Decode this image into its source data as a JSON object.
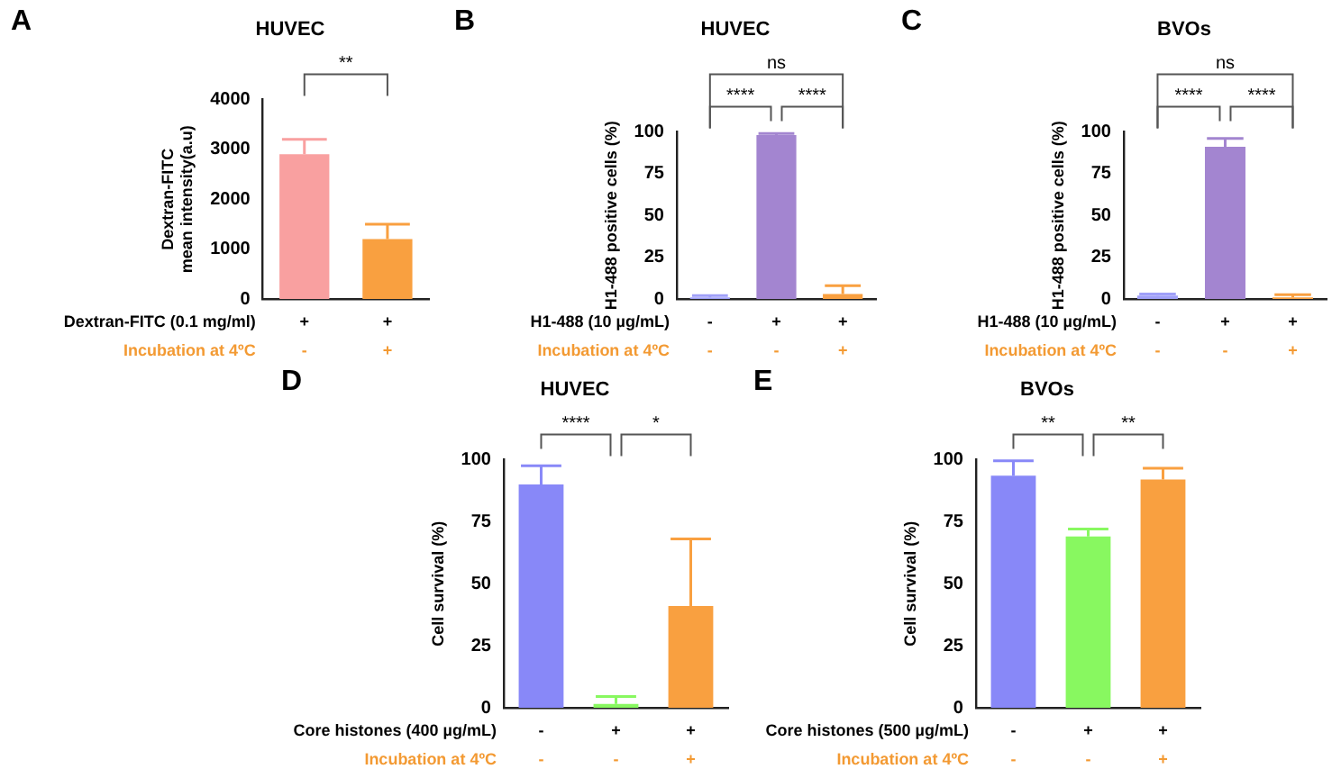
{
  "chart_data": [
    {
      "type": "bar",
      "title": "HUVEC",
      "ylabel": "Dextran-FITC\nmean intensity(a.u)",
      "xlabel": "Dextran-FITC (0.1 mg/ml)\nIncubation at 4ºC",
      "categories": [
        "+\n-",
        "+\n+"
      ],
      "values": [
        2900,
        1200
      ],
      "errors": [
        [
          2900,
          3200
        ],
        [
          1200,
          1500
        ]
      ],
      "colors": [
        "#f9a0a0",
        "#f9a040"
      ],
      "ylim": [
        0,
        4000
      ],
      "yticks": [
        0,
        1000,
        2000,
        3000,
        4000
      ],
      "grid": false,
      "legend": false,
      "annotations": [
        "A",
        "**"
      ]
    },
    {
      "type": "bar",
      "title": "HUVEC",
      "ylabel": "H1-488 positive cells (%)",
      "xlabel": "H1-488 (10 µg/mL)\nIncubation at 4ºC",
      "categories": [
        "-\n-",
        "+\n-",
        "+\n+"
      ],
      "values": [
        1,
        98,
        3
      ],
      "errors": [
        [
          1,
          2
        ],
        [
          98,
          99
        ],
        [
          3,
          8
        ]
      ],
      "colors": [
        "#a0a0f8",
        "#a385d0",
        "#f9a040"
      ],
      "ylim": [
        0,
        100
      ],
      "yticks": [
        0,
        25,
        50,
        75,
        100
      ],
      "grid": false,
      "legend": false,
      "annotations": [
        "B",
        "****",
        "****",
        "ns"
      ]
    },
    {
      "type": "bar",
      "title": "BVOs",
      "ylabel": "H1-488 positive cells (%)",
      "xlabel": "H1-488 (10 µg/mL)\nIncubation at 4ºC",
      "categories": [
        "-\n-",
        "+\n-",
        "+\n+"
      ],
      "values": [
        2,
        91,
        1
      ],
      "errors": [
        [
          2,
          3
        ],
        [
          91,
          96
        ],
        [
          1,
          2.5
        ]
      ],
      "colors": [
        "#a0a0f8",
        "#a385d0",
        "#f9a040"
      ],
      "ylim": [
        0,
        100
      ],
      "yticks": [
        0,
        25,
        50,
        75,
        100
      ],
      "grid": false,
      "legend": false,
      "annotations": [
        "C",
        "****",
        "****",
        "ns"
      ]
    },
    {
      "type": "bar",
      "title": "HUVEC",
      "ylabel": "Cell survival (%)",
      "xlabel": "Core histones (400 µg/mL)\nIncubation at 4ºC",
      "categories": [
        "-\n-",
        "+\n-",
        "+\n+"
      ],
      "values": [
        90,
        1.5,
        41
      ],
      "errors": [
        [
          90,
          97.5
        ],
        [
          1.5,
          4.5
        ],
        [
          41,
          68
        ]
      ],
      "colors": [
        "#8888f8",
        "#88f860",
        "#f9a040"
      ],
      "ylim": [
        0,
        100
      ],
      "yticks": [
        0,
        25,
        50,
        75,
        100
      ],
      "grid": false,
      "legend": false,
      "annotations": [
        "D",
        "****",
        "*"
      ]
    },
    {
      "type": "bar",
      "title": "BVOs",
      "ylabel": "Cell survival (%)",
      "xlabel": "Core histones (500 µg/mL)\nIncubation at 4ºC",
      "categories": [
        "-\n-",
        "+\n-",
        "+\n+"
      ],
      "values": [
        93.5,
        69,
        92
      ],
      "errors": [
        [
          93.5,
          99.5
        ],
        [
          69,
          72
        ],
        [
          92,
          96.5
        ]
      ],
      "colors": [
        "#8888f8",
        "#88f860",
        "#f9a040"
      ],
      "ylim": [
        0,
        100
      ],
      "yticks": [
        0,
        25,
        50,
        75,
        100
      ],
      "grid": false,
      "legend": false,
      "annotations": [
        "E",
        "**",
        "**"
      ]
    }
  ]
}
